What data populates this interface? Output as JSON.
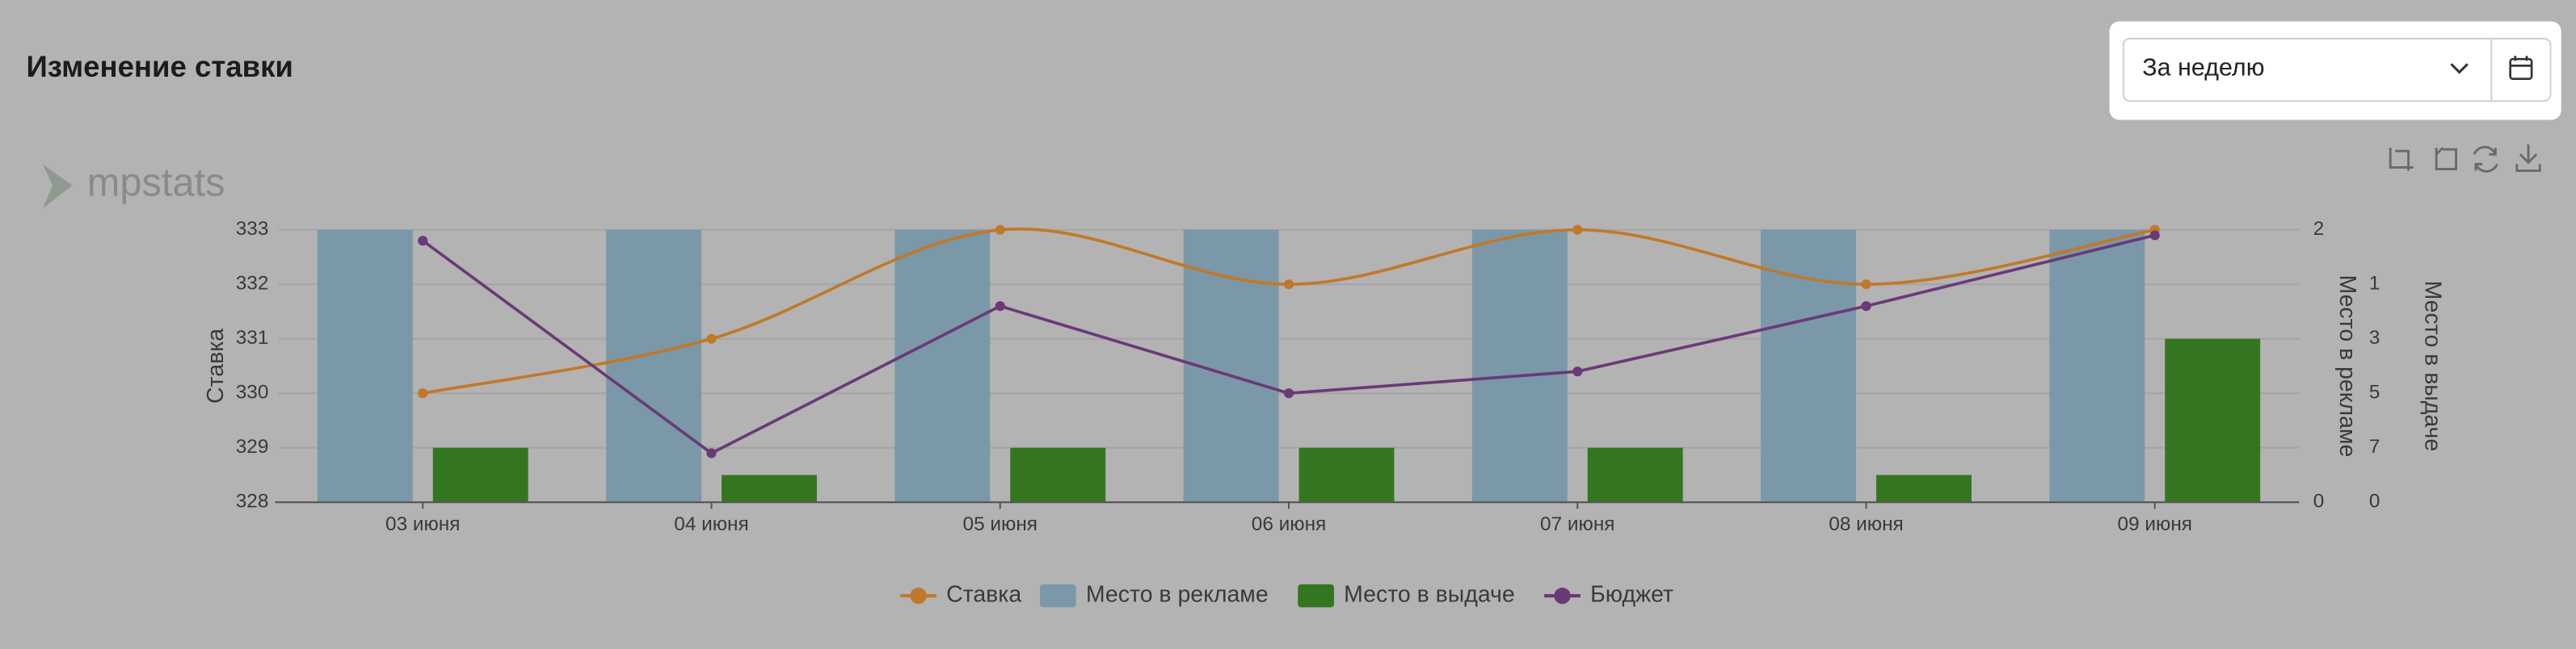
{
  "logo": "mpstats",
  "controls": {
    "period": "За неделю"
  },
  "chart_data": {
    "type": "combo",
    "title": "Изменение ставки",
    "categories": [
      "03 июня",
      "04 июня",
      "05 июня",
      "06 июня",
      "07 июня",
      "08 июня",
      "09 июня"
    ],
    "ylabel": "Ставка",
    "ylim": [
      328,
      333
    ],
    "yticks": [
      328,
      329,
      330,
      331,
      332,
      333
    ],
    "y2label": "Место в рекламе",
    "y2lim": [
      0,
      2
    ],
    "y2ticks": [
      0,
      2
    ],
    "y3label": "Место в выдаче",
    "y3lim": [
      0,
      5
    ],
    "y3ticks": [
      0,
      {
        "value": 1,
        "label": "7"
      },
      {
        "value": 2,
        "label": "5"
      },
      {
        "value": 3,
        "label": "3"
      },
      {
        "value": 4,
        "label": "1"
      }
    ],
    "grid": true,
    "legend": "bottom",
    "series": [
      {
        "name": "Ставка",
        "type": "line",
        "smooth": true,
        "axis": "y",
        "color": "#c0792a",
        "values": [
          330,
          331,
          333,
          332,
          333,
          332,
          333
        ]
      },
      {
        "name": "Место в рекламе",
        "type": "bar",
        "axis": "y2",
        "color": "#7a98a8",
        "values": [
          2,
          2,
          2,
          2,
          2,
          2,
          2
        ]
      },
      {
        "name": "Место в выдаче",
        "type": "bar",
        "axis": "y3",
        "color": "#347620",
        "values": [
          1,
          0.5,
          1,
          1,
          1,
          0.5,
          3
        ]
      },
      {
        "name": "Бюджет",
        "type": "line",
        "smooth": false,
        "axis": "y",
        "color": "#6a3a78",
        "values": [
          332.8,
          328.9,
          331.6,
          330,
          330.4,
          331.6,
          332.9
        ]
      }
    ]
  }
}
